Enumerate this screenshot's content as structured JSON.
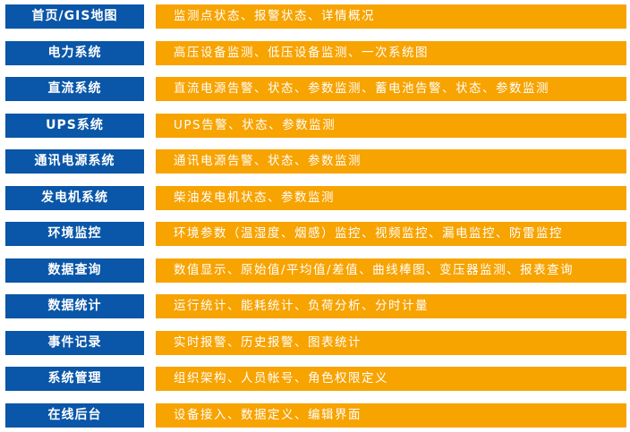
{
  "colors": {
    "category": "#0a56a8",
    "description": "#f7a300"
  },
  "rows": [
    {
      "category": "首页/GIS地图",
      "description": "监测点状态、报警状态、详情概况"
    },
    {
      "category": "电力系统",
      "description": "高压设备监测、低压设备监测、一次系统图"
    },
    {
      "category": "直流系统",
      "description": "直流电源告警、状态、参数监测、蓄电池告警、状态、参数监测"
    },
    {
      "category": "UPS系统",
      "description": "UPS告警、状态、参数监测"
    },
    {
      "category": "通讯电源系统",
      "description": "通讯电源告警、状态、参数监测"
    },
    {
      "category": "发电机系统",
      "description": "柴油发电机状态、参数监测"
    },
    {
      "category": "环境监控",
      "description": "环境参数（温湿度、烟感）监控、视频监控、漏电监控、防雷监控"
    },
    {
      "category": "数据查询",
      "description": "数值显示、原始值/平均值/差值、曲线棒图、变压器监测、报表查询"
    },
    {
      "category": "数据统计",
      "description": "运行统计、能耗统计、负荷分析、分时计量"
    },
    {
      "category": "事件记录",
      "description": "实时报警、历史报警、图表统计"
    },
    {
      "category": "系统管理",
      "description": "组织架构、人员帐号、角色权限定义"
    },
    {
      "category": "在线后台",
      "description": "设备接入、数据定义、编辑界面"
    }
  ]
}
